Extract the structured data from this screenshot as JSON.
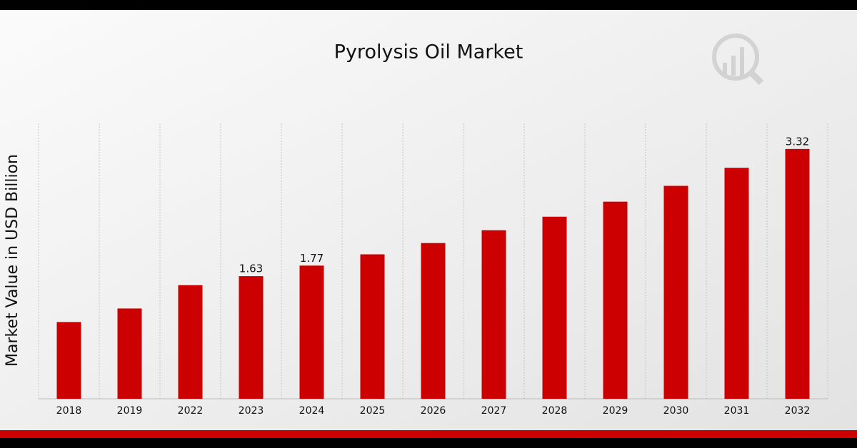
{
  "chart_data": {
    "type": "bar",
    "title": "Pyrolysis Oil Market",
    "y_label": "Market Value in USD Billion",
    "categories": [
      "2018",
      "2019",
      "2022",
      "2023",
      "2024",
      "2025",
      "2026",
      "2027",
      "2028",
      "2029",
      "2030",
      "2031",
      "2032"
    ],
    "values": [
      1.02,
      1.2,
      1.51,
      1.63,
      1.77,
      1.92,
      2.07,
      2.24,
      2.42,
      2.62,
      2.83,
      3.07,
      3.32
    ],
    "value_labels": [
      null,
      null,
      null,
      "1.63",
      "1.77",
      null,
      null,
      null,
      null,
      null,
      null,
      null,
      "3.32"
    ],
    "color": "#cc0000",
    "ylim": [
      0,
      3.66
    ]
  }
}
